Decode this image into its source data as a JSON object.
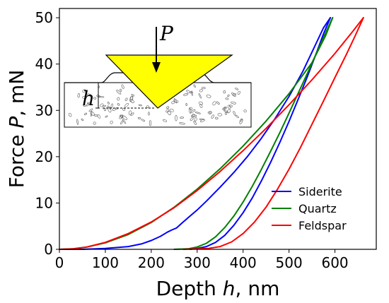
{
  "chart_data": {
    "type": "line",
    "xlabel": "Depth h, nm",
    "ylabel": "Force P, mN",
    "xlabel_parts": [
      "Depth ",
      "h",
      ", nm"
    ],
    "ylabel_parts": [
      "Force ",
      "P",
      ", mN"
    ],
    "xlim": [
      0,
      690
    ],
    "ylim": [
      0,
      52
    ],
    "x_ticks": [
      0,
      100,
      200,
      300,
      400,
      500,
      600
    ],
    "y_ticks": [
      0,
      10,
      20,
      30,
      40,
      50
    ],
    "grid": false,
    "legend_position": "bottom-right",
    "series": [
      {
        "name": "Siderite",
        "color": "#0000ff",
        "loading": [
          [
            0,
            0
          ],
          [
            50,
            0
          ],
          [
            100,
            0.2
          ],
          [
            150,
            0.6
          ],
          [
            180,
            1.2
          ],
          [
            200,
            1.9
          ],
          [
            220,
            2.8
          ],
          [
            235,
            3.7
          ],
          [
            245,
            4.2
          ],
          [
            255,
            4.6
          ],
          [
            265,
            5.5
          ],
          [
            280,
            6.8
          ],
          [
            300,
            8.5
          ],
          [
            320,
            10.4
          ],
          [
            350,
            13.4
          ],
          [
            380,
            16.6
          ],
          [
            410,
            20.1
          ],
          [
            440,
            24.0
          ],
          [
            470,
            28.3
          ],
          [
            500,
            33.0
          ],
          [
            530,
            38.4
          ],
          [
            555,
            43.6
          ],
          [
            575,
            47.8
          ],
          [
            590,
            50
          ]
        ],
        "unloading": [
          [
            590,
            50
          ],
          [
            575,
            46.5
          ],
          [
            560,
            42.5
          ],
          [
            540,
            37.3
          ],
          [
            520,
            32.4
          ],
          [
            500,
            27.6
          ],
          [
            480,
            23.1
          ],
          [
            460,
            18.8
          ],
          [
            440,
            14.8
          ],
          [
            420,
            11.1
          ],
          [
            400,
            7.9
          ],
          [
            380,
            5.2
          ],
          [
            360,
            3.0
          ],
          [
            340,
            1.5
          ],
          [
            320,
            0.6
          ],
          [
            300,
            0.2
          ],
          [
            285,
            0
          ]
        ]
      },
      {
        "name": "Quartz",
        "color": "#008000",
        "loading": [
          [
            0,
            0
          ],
          [
            30,
            0.1
          ],
          [
            60,
            0.5
          ],
          [
            100,
            1.4
          ],
          [
            150,
            3.2
          ],
          [
            200,
            5.8
          ],
          [
            250,
            9.1
          ],
          [
            300,
            13.0
          ],
          [
            350,
            17.4
          ],
          [
            400,
            22.3
          ],
          [
            450,
            27.7
          ],
          [
            500,
            33.6
          ],
          [
            550,
            40.3
          ],
          [
            580,
            46.2
          ],
          [
            595,
            50
          ]
        ],
        "unloading": [
          [
            595,
            50
          ],
          [
            580,
            46.8
          ],
          [
            560,
            42.4
          ],
          [
            540,
            38.0
          ],
          [
            520,
            33.7
          ],
          [
            500,
            29.4
          ],
          [
            480,
            25.2
          ],
          [
            460,
            21.2
          ],
          [
            440,
            17.3
          ],
          [
            420,
            13.6
          ],
          [
            400,
            10.2
          ],
          [
            380,
            7.2
          ],
          [
            360,
            4.7
          ],
          [
            340,
            2.7
          ],
          [
            320,
            1.3
          ],
          [
            300,
            0.5
          ],
          [
            280,
            0.1
          ],
          [
            250,
            0
          ]
        ]
      },
      {
        "name": "Feldspar",
        "color": "#ff0000",
        "loading": [
          [
            0,
            0
          ],
          [
            30,
            0.1
          ],
          [
            60,
            0.5
          ],
          [
            100,
            1.5
          ],
          [
            150,
            3.4
          ],
          [
            200,
            5.9
          ],
          [
            250,
            9.0
          ],
          [
            300,
            12.7
          ],
          [
            350,
            16.8
          ],
          [
            400,
            21.3
          ],
          [
            450,
            26.1
          ],
          [
            500,
            31.2
          ],
          [
            550,
            36.6
          ],
          [
            600,
            42.3
          ],
          [
            640,
            47.2
          ],
          [
            662,
            50
          ]
        ],
        "unloading": [
          [
            662,
            50
          ],
          [
            645,
            46.3
          ],
          [
            625,
            42.1
          ],
          [
            600,
            37.1
          ],
          [
            575,
            32.0
          ],
          [
            550,
            27.0
          ],
          [
            525,
            22.0
          ],
          [
            500,
            17.3
          ],
          [
            475,
            13.0
          ],
          [
            450,
            9.1
          ],
          [
            425,
            5.9
          ],
          [
            400,
            3.4
          ],
          [
            375,
            1.6
          ],
          [
            350,
            0.6
          ],
          [
            325,
            0.2
          ],
          [
            300,
            0.1
          ],
          [
            270,
            0
          ]
        ]
      }
    ],
    "inset": {
      "load_label": "P",
      "depth_label": "h",
      "indenter_color": "#ffff00"
    }
  }
}
